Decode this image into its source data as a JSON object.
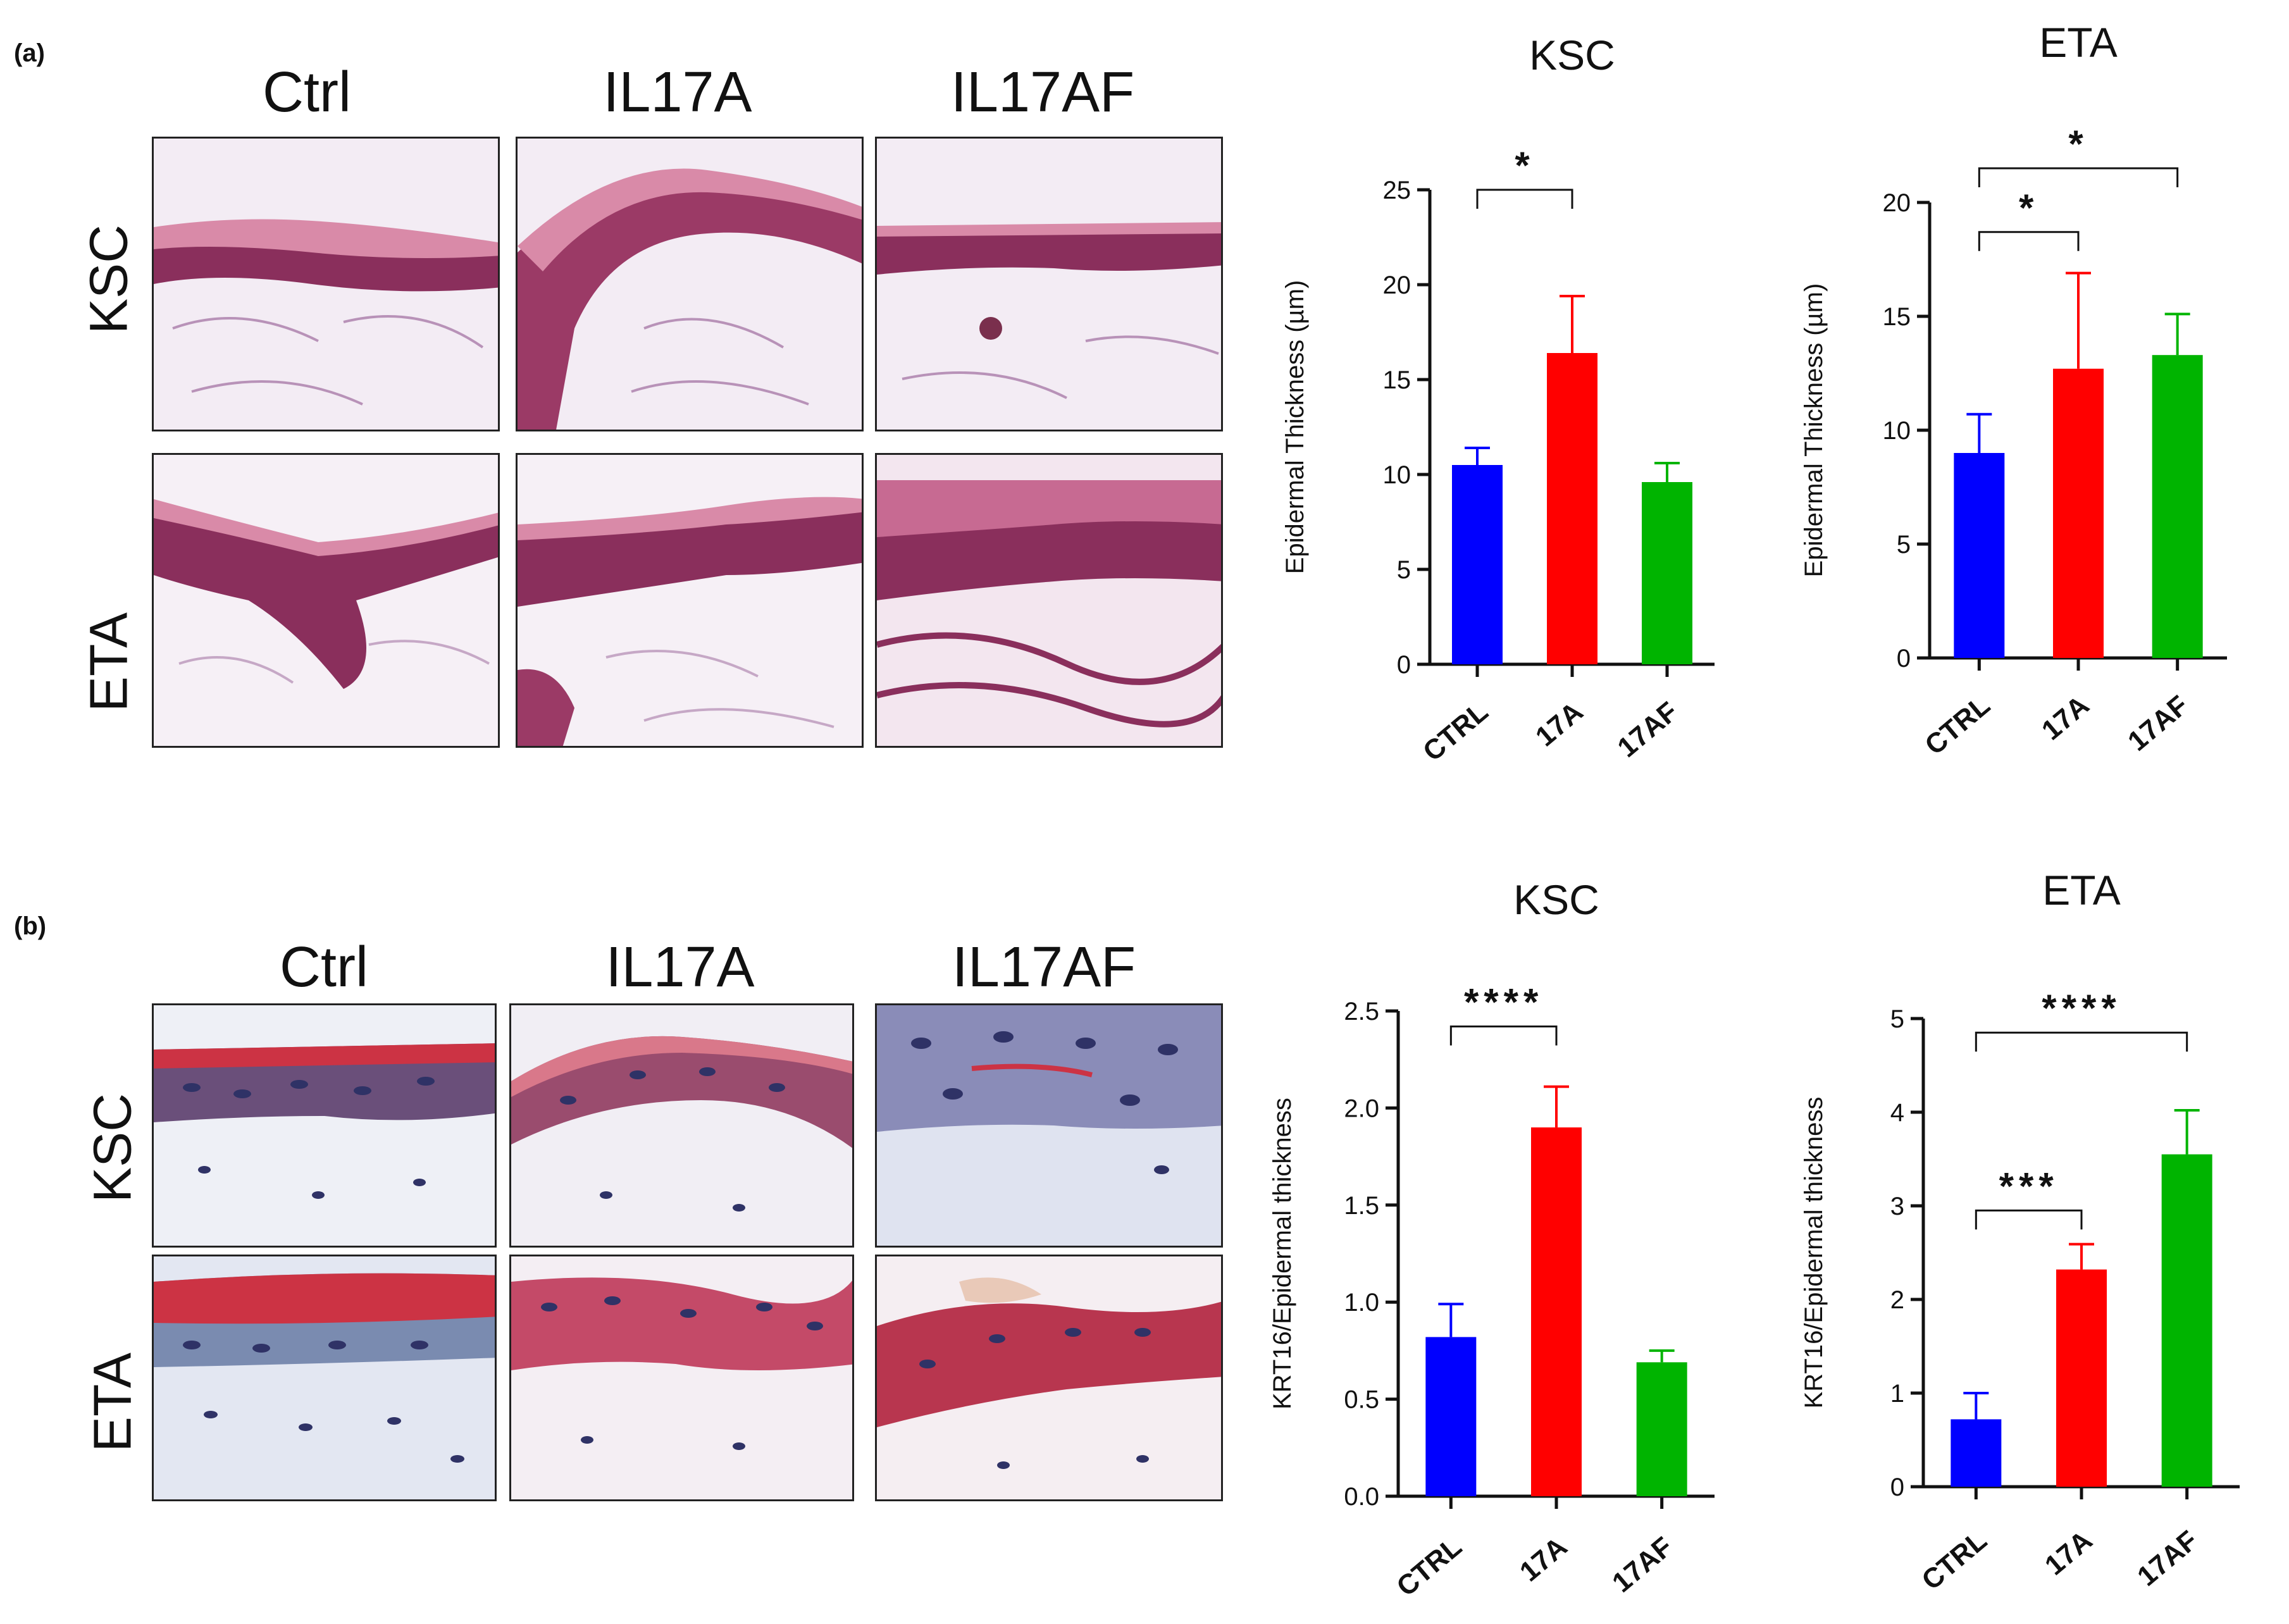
{
  "figure": {
    "panel_a": {
      "label": "(a)",
      "columns": [
        "Ctrl",
        "IL17A",
        "IL17AF"
      ],
      "rows": [
        "KSC",
        "ETA"
      ]
    },
    "panel_b": {
      "label": "(b)",
      "columns": [
        "Ctrl",
        "IL17A",
        "IL17AF"
      ],
      "rows": [
        "KSC",
        "ETA"
      ]
    }
  },
  "colors": {
    "ctrl": "#0000ff",
    "il17a": "#ff0000",
    "il17af": "#00b400",
    "he_dark": "#8a2f5c",
    "he_mid": "#b34d7a",
    "he_light": "#e6bfd6",
    "ihc_blue": "#3a3f7a",
    "ihc_red": "#cc3344",
    "ihc_bg": "#dfe3f0"
  },
  "chart_data": [
    {
      "id": "a-ksc",
      "type": "bar",
      "title": "KSC",
      "ylabel": "Epidermal Thickness (µm)",
      "categories": [
        "CTRL",
        "17A",
        "17AF"
      ],
      "values": [
        10.5,
        16.4,
        9.6
      ],
      "errors": [
        0.9,
        3.0,
        1.0
      ],
      "ylim": [
        0,
        25
      ],
      "yticks": [
        0,
        5,
        10,
        15,
        20,
        25
      ],
      "ytick_labels": [
        "0",
        "5",
        "10",
        "15",
        "20",
        "25"
      ],
      "significance": [
        {
          "from": 0,
          "to": 1,
          "label": "*",
          "y": 25
        }
      ]
    },
    {
      "id": "a-eta",
      "type": "bar",
      "title": "ETA",
      "ylabel": "Epidermal Thickness (µm)",
      "categories": [
        "CTRL",
        "17A",
        "17AF"
      ],
      "values": [
        9.0,
        12.7,
        13.3
      ],
      "errors": [
        1.7,
        4.2,
        1.8
      ],
      "ylim": [
        0,
        20
      ],
      "yticks": [
        0,
        5,
        10,
        15,
        20
      ],
      "ytick_labels": [
        "0",
        "5",
        "10",
        "15",
        "20"
      ],
      "significance": [
        {
          "from": 0,
          "to": 1,
          "label": "*",
          "y": 18.7
        },
        {
          "from": 0,
          "to": 2,
          "label": "*",
          "y": 21.5
        }
      ]
    },
    {
      "id": "b-ksc",
      "type": "bar",
      "title": "KSC",
      "ylabel": "KRT16/Epidermal thickness",
      "categories": [
        "CTRL",
        "17A",
        "17AF"
      ],
      "values": [
        0.82,
        1.9,
        0.69
      ],
      "errors": [
        0.17,
        0.21,
        0.06
      ],
      "ylim": [
        0,
        2.5
      ],
      "yticks": [
        0,
        0.5,
        1.0,
        1.5,
        2.0,
        2.5
      ],
      "ytick_labels": [
        "0.0",
        "0.5",
        "1.0",
        "1.5",
        "2.0",
        "2.5"
      ],
      "significance": [
        {
          "from": 0,
          "to": 1,
          "label": "****",
          "y": 2.42
        }
      ]
    },
    {
      "id": "b-eta",
      "type": "bar",
      "title": "ETA",
      "ylabel": "KRT16/Epidermal thickness",
      "categories": [
        "CTRL",
        "17A",
        "17AF"
      ],
      "values": [
        0.72,
        2.32,
        3.55
      ],
      "errors": [
        0.28,
        0.27,
        0.47
      ],
      "ylim": [
        0,
        5
      ],
      "yticks": [
        0,
        1,
        2,
        3,
        4,
        5
      ],
      "ytick_labels": [
        "0",
        "1",
        "2",
        "3",
        "4",
        "5"
      ],
      "significance": [
        {
          "from": 0,
          "to": 1,
          "label": "***",
          "y": 2.95
        },
        {
          "from": 0,
          "to": 2,
          "label": "****",
          "y": 4.85
        }
      ]
    }
  ]
}
